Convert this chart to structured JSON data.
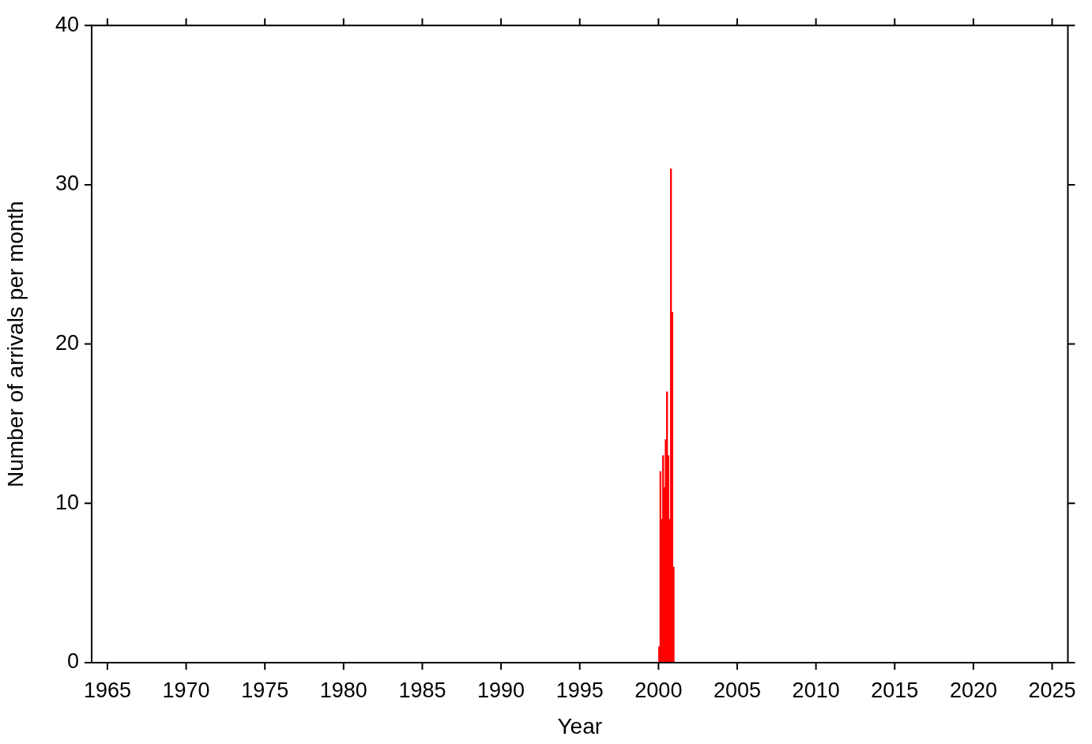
{
  "chart_data": {
    "type": "histogram",
    "xlabel": "Year",
    "ylabel": "Number of arrivals per month",
    "bins": [
      2000,
      2000.083,
      2000.167,
      2000.25,
      2000.333,
      2000.417,
      2000.5,
      2000.583,
      2000.667,
      2000.75,
      2000.833,
      2000.917,
      2001
    ],
    "values": [
      1,
      12,
      9,
      13,
      11,
      14,
      17,
      13,
      9,
      31,
      22,
      6
    ],
    "color": "#ff0000",
    "xlim": [
      1964,
      2026
    ],
    "xticks": [
      1965,
      1970,
      1975,
      1980,
      1985,
      1990,
      1995,
      2000,
      2005,
      2010,
      2015,
      2020,
      2025
    ],
    "ylim": [
      0,
      40
    ],
    "yticks": [
      0,
      10,
      20,
      30,
      40
    ],
    "grid": false,
    "legend": false
  }
}
